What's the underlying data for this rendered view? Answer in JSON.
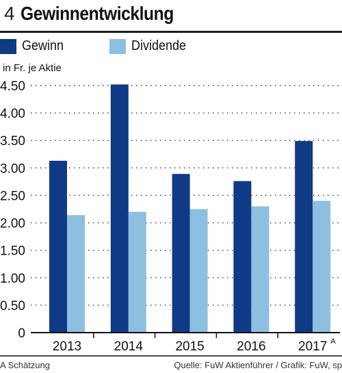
{
  "header": {
    "figure_number": "4",
    "title": "Gewinnentwicklung"
  },
  "footer": {
    "note": "A Schätzung",
    "source": "Quelle: FuW Aktienführer / Grafik: FuW, sp"
  },
  "colors": {
    "gewinn": "#0f3a85",
    "dividende": "#8dbfe0",
    "grid": "#333333"
  },
  "chart_data": {
    "type": "bar",
    "ylabel": "in Fr. je Aktie",
    "categories": [
      "2013",
      "2014",
      "2015",
      "2016",
      "2017"
    ],
    "category_superscripts": [
      "",
      "",
      "",
      "",
      "A"
    ],
    "ylim": [
      0,
      4.5
    ],
    "yticks": [
      "0",
      "0.50",
      "1.00",
      "1.50",
      "2.00",
      "2.50",
      "3.00",
      "3.50",
      "4.00",
      "4.50"
    ],
    "ytick_values": [
      0,
      0.5,
      1.0,
      1.5,
      2.0,
      2.5,
      3.0,
      3.5,
      4.0,
      4.5
    ],
    "grid": "dotted horizontal",
    "legend_position": "top",
    "series": [
      {
        "name": "Gewinn",
        "values": [
          3.13,
          4.52,
          2.89,
          2.76,
          3.49
        ]
      },
      {
        "name": "Dividende",
        "values": [
          2.14,
          2.2,
          2.25,
          2.3,
          2.4
        ]
      }
    ]
  }
}
